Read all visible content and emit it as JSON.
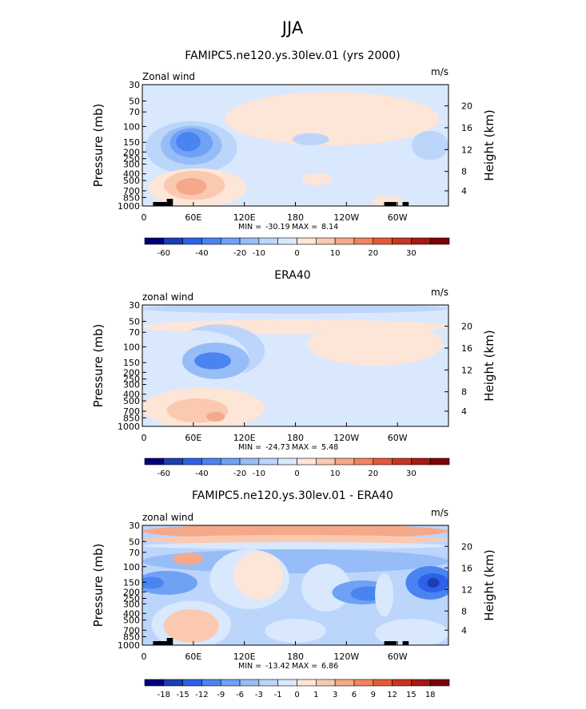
{
  "figure": {
    "title": "JJA",
    "x_ticks": [
      "0",
      "60E",
      "120E",
      "180",
      "120W",
      "60W"
    ],
    "y_ticks": [
      "30",
      "50",
      "70",
      "100",
      "150",
      "200",
      "250",
      "300",
      "400",
      "500",
      "700",
      "850",
      "1000"
    ],
    "height_ticks": [
      "20",
      "16",
      "12",
      "8",
      "4"
    ],
    "y_label": "Pressure (mb)",
    "height_label": "Height (km)",
    "units": "m/s",
    "min_label": "MIN =",
    "max_label": "MAX ="
  },
  "chart_data": [
    {
      "type": "heatmap",
      "title": "FAMIPC5.ne120.ys.30lev.01 (yrs 2000)",
      "variable": "Zonal wind",
      "units": "m/s",
      "min": "-30.19",
      "max": "8.14",
      "colorbar_labels": [
        "-60",
        "-40",
        "-20",
        "-10",
        "0",
        "10",
        "20",
        "30"
      ],
      "colorbar_colors": [
        "#00007a",
        "#1a3fb4",
        "#2d62e8",
        "#4a84f0",
        "#6fa1f5",
        "#97bdf8",
        "#bcd5fb",
        "#d9e8fd",
        "#fde5d8",
        "#fbc9b0",
        "#f6a88a",
        "#f0845f",
        "#e35a36",
        "#c93420",
        "#a51a12",
        "#7a0505"
      ]
    },
    {
      "type": "heatmap",
      "title": "ERA40",
      "variable": "zonal wind",
      "units": "m/s",
      "min": "-24.73",
      "max": "5.48",
      "colorbar_labels": [
        "-60",
        "-40",
        "-20",
        "-10",
        "0",
        "10",
        "20",
        "30"
      ],
      "colorbar_colors": [
        "#00007a",
        "#1a3fb4",
        "#2d62e8",
        "#4a84f0",
        "#6fa1f5",
        "#97bdf8",
        "#bcd5fb",
        "#d9e8fd",
        "#fde5d8",
        "#fbc9b0",
        "#f6a88a",
        "#f0845f",
        "#e35a36",
        "#c93420",
        "#a51a12",
        "#7a0505"
      ]
    },
    {
      "type": "heatmap",
      "title": "FAMIPC5.ne120.ys.30lev.01 - ERA40",
      "variable": "zonal wind",
      "units": "m/s",
      "min": "-13.42",
      "max": "6.86",
      "colorbar_labels": [
        "-18",
        "-15",
        "-12",
        "-9",
        "-6",
        "-3",
        "-1",
        "0",
        "1",
        "3",
        "6",
        "9",
        "12",
        "15",
        "18"
      ],
      "colorbar_colors": [
        "#00007a",
        "#1a3fb4",
        "#2d62e8",
        "#4a84f0",
        "#6fa1f5",
        "#97bdf8",
        "#bcd5fb",
        "#d9e8fd",
        "#fde5d8",
        "#fbc9b0",
        "#f6a88a",
        "#f0845f",
        "#e35a36",
        "#c93420",
        "#a51a12",
        "#7a0505"
      ]
    }
  ]
}
